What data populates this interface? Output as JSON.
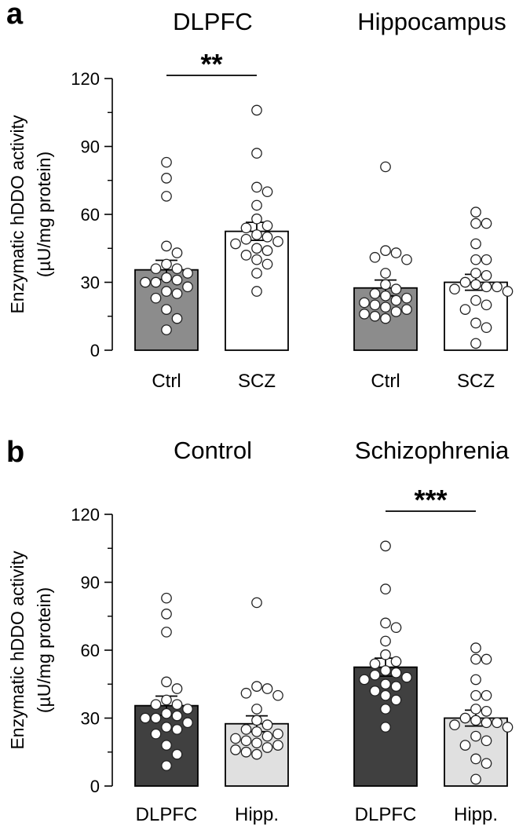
{
  "chart_data": [
    {
      "type": "bar",
      "panel": "a",
      "groups": [
        "DLPFC",
        "Hippocampus"
      ],
      "categories": [
        "Ctrl",
        "SCZ",
        "Ctrl",
        "SCZ"
      ],
      "bar_groups": [
        0,
        0,
        1,
        1
      ],
      "values": [
        35.5,
        52.5,
        27.5,
        30
      ],
      "sem": [
        4.2,
        4.0,
        3.5,
        3.5
      ],
      "bar_colors": [
        "#8c8c8c",
        "#ffffff",
        "#8c8c8c",
        "#ffffff"
      ],
      "points": [
        [
          83,
          76,
          68,
          46,
          43,
          38,
          36,
          36,
          34,
          32,
          31,
          30,
          30,
          28,
          26,
          25,
          23,
          18,
          14,
          9
        ],
        [
          106,
          87,
          72,
          70,
          64,
          58,
          55,
          54,
          51,
          50,
          49,
          48,
          47,
          45,
          44,
          42,
          40,
          38,
          34,
          26
        ],
        [
          81,
          44,
          43,
          41,
          40,
          34,
          29,
          27,
          25,
          24,
          23,
          22,
          21,
          20,
          19,
          18,
          17,
          16,
          15,
          14
        ],
        [
          61,
          56,
          56,
          47,
          40,
          40,
          34,
          33,
          30,
          29,
          28,
          28,
          27,
          26,
          22,
          20,
          18,
          12,
          10,
          3
        ]
      ],
      "ylabel": "Enzymatic hDDO activity",
      "yunit": "(µU/mg protein)",
      "ylim": [
        0,
        120
      ],
      "yticks": [
        "0",
        "30",
        "60",
        "90",
        "120"
      ],
      "significance": [
        {
          "bars": [
            0,
            1
          ],
          "label": "**"
        }
      ]
    },
    {
      "type": "bar",
      "panel": "b",
      "groups": [
        "Control",
        "Schizophrenia"
      ],
      "categories": [
        "DLPFC",
        "Hipp.",
        "DLPFC",
        "Hipp."
      ],
      "bar_groups": [
        0,
        0,
        1,
        1
      ],
      "values": [
        35.5,
        27.5,
        52.5,
        30
      ],
      "sem": [
        4.2,
        3.5,
        4.0,
        3.5
      ],
      "bar_colors": [
        "#404040",
        "#e0e0e0",
        "#404040",
        "#e0e0e0"
      ],
      "points": [
        [
          83,
          76,
          68,
          46,
          43,
          38,
          36,
          36,
          34,
          32,
          31,
          30,
          30,
          28,
          26,
          25,
          23,
          18,
          14,
          9
        ],
        [
          81,
          44,
          43,
          41,
          40,
          34,
          29,
          27,
          25,
          24,
          23,
          22,
          21,
          20,
          19,
          18,
          17,
          16,
          15,
          14
        ],
        [
          106,
          87,
          72,
          70,
          64,
          58,
          55,
          54,
          51,
          50,
          49,
          48,
          47,
          45,
          44,
          42,
          40,
          38,
          34,
          26
        ],
        [
          61,
          56,
          56,
          47,
          40,
          40,
          34,
          33,
          30,
          29,
          28,
          28,
          27,
          26,
          22,
          20,
          18,
          12,
          10,
          3
        ]
      ],
      "ylabel": "Enzymatic hDDO activity",
      "yunit": "(µU/mg protein)",
      "ylim": [
        0,
        120
      ],
      "yticks": [
        "0",
        "30",
        "60",
        "90",
        "120"
      ],
      "significance": [
        {
          "bars": [
            2,
            3
          ],
          "label": "***"
        }
      ]
    }
  ]
}
